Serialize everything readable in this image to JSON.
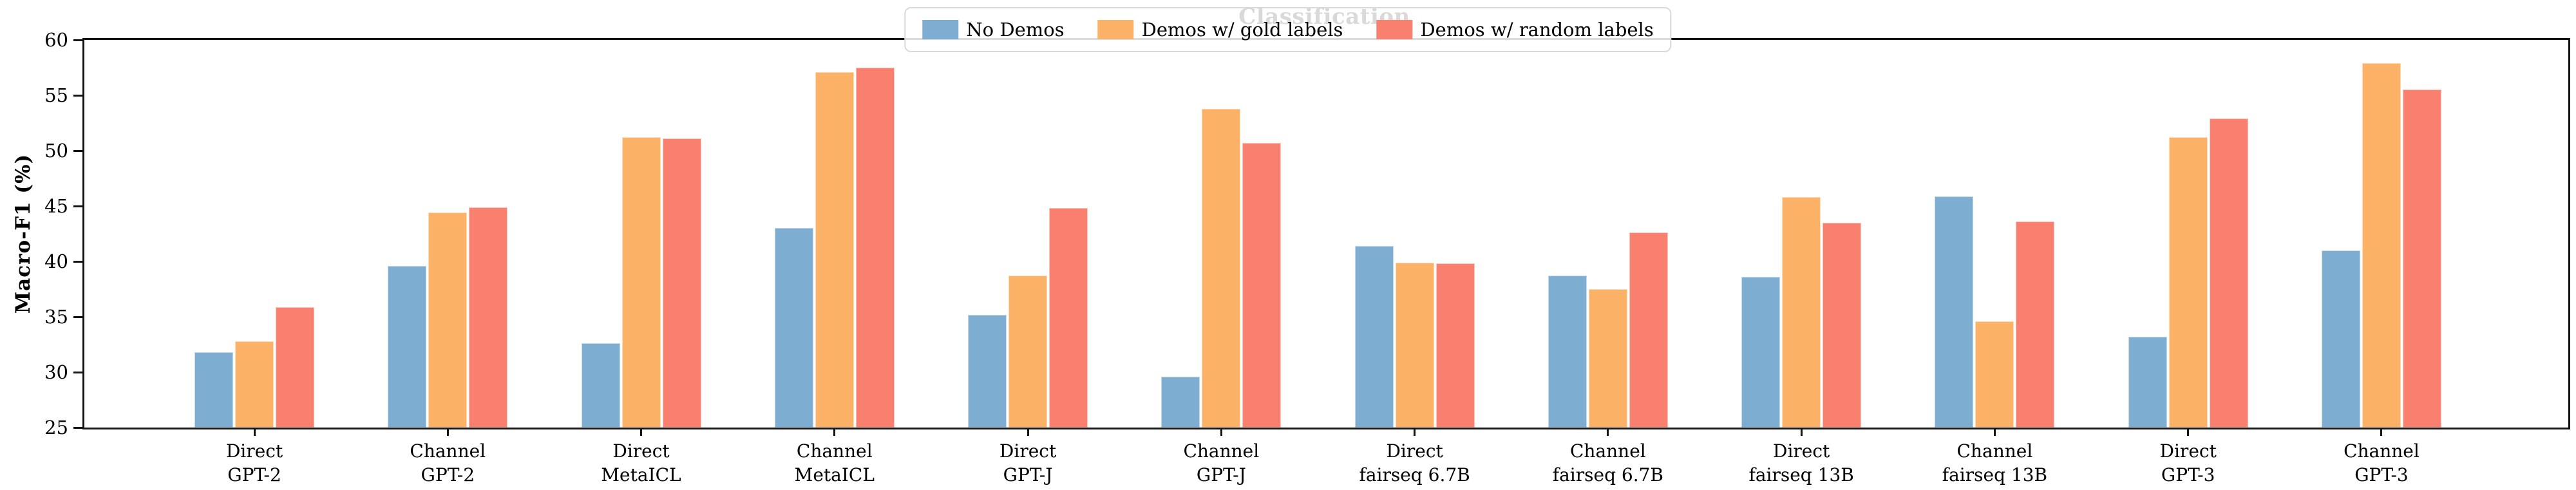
{
  "chart_data": {
    "type": "bar",
    "title": "Classification",
    "ylabel": "Macro-F1 (%)",
    "xlabel": "",
    "ylim": [
      25,
      60
    ],
    "yticks": [
      25,
      30,
      35,
      40,
      45,
      50,
      55,
      60
    ],
    "grid": false,
    "legend_position": "upper center",
    "categories": [
      {
        "line1": "Direct",
        "line2": "GPT-2"
      },
      {
        "line1": "Channel",
        "line2": "GPT-2"
      },
      {
        "line1": "Direct",
        "line2": "MetaICL"
      },
      {
        "line1": "Channel",
        "line2": "MetaICL"
      },
      {
        "line1": "Direct",
        "line2": "GPT-J"
      },
      {
        "line1": "Channel",
        "line2": "GPT-J"
      },
      {
        "line1": "Direct",
        "line2": "fairseq 6.7B"
      },
      {
        "line1": "Channel",
        "line2": "fairseq 6.7B"
      },
      {
        "line1": "Direct",
        "line2": "fairseq 13B"
      },
      {
        "line1": "Channel",
        "line2": "fairseq 13B"
      },
      {
        "line1": "Direct",
        "line2": "GPT-3"
      },
      {
        "line1": "Channel",
        "line2": "GPT-3"
      }
    ],
    "series": [
      {
        "name": "No Demos",
        "color": "#7daed1",
        "values": [
          31.8,
          39.6,
          32.6,
          43.0,
          35.2,
          29.6,
          41.4,
          38.7,
          38.6,
          45.9,
          33.2,
          41.0
        ]
      },
      {
        "name": "Demos w/ gold labels",
        "color": "#fbb266",
        "values": [
          32.8,
          44.4,
          51.2,
          57.1,
          38.7,
          53.8,
          39.9,
          37.5,
          45.8,
          34.6,
          51.2,
          57.9
        ]
      },
      {
        "name": "Demos w/ random labels",
        "color": "#f9806f",
        "values": [
          35.9,
          44.9,
          51.1,
          57.5,
          44.8,
          50.7,
          39.8,
          42.6,
          43.5,
          43.6,
          52.9,
          55.5
        ]
      }
    ]
  }
}
